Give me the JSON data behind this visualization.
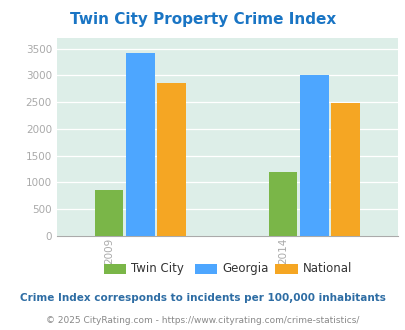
{
  "title": "Twin City Property Crime Index",
  "years": [
    "2009",
    "2014"
  ],
  "categories": [
    "Twin City",
    "Georgia",
    "National"
  ],
  "values": {
    "2009": [
      860,
      3420,
      2850
    ],
    "2014": [
      1190,
      3010,
      2490
    ]
  },
  "bar_colors": [
    "#7ab648",
    "#4da6ff",
    "#f5a623"
  ],
  "bg_color": "#ddeee8",
  "ylim": [
    0,
    3700
  ],
  "yticks": [
    0,
    500,
    1000,
    1500,
    2000,
    2500,
    3000,
    3500
  ],
  "title_color": "#1a75c4",
  "subtitle": "Crime Index corresponds to incidents per 100,000 inhabitants",
  "footer": "© 2025 CityRating.com - https://www.cityrating.com/crime-statistics/",
  "subtitle_color": "#2e6da4",
  "footer_color": "#888888",
  "tick_color": "#f5a623"
}
